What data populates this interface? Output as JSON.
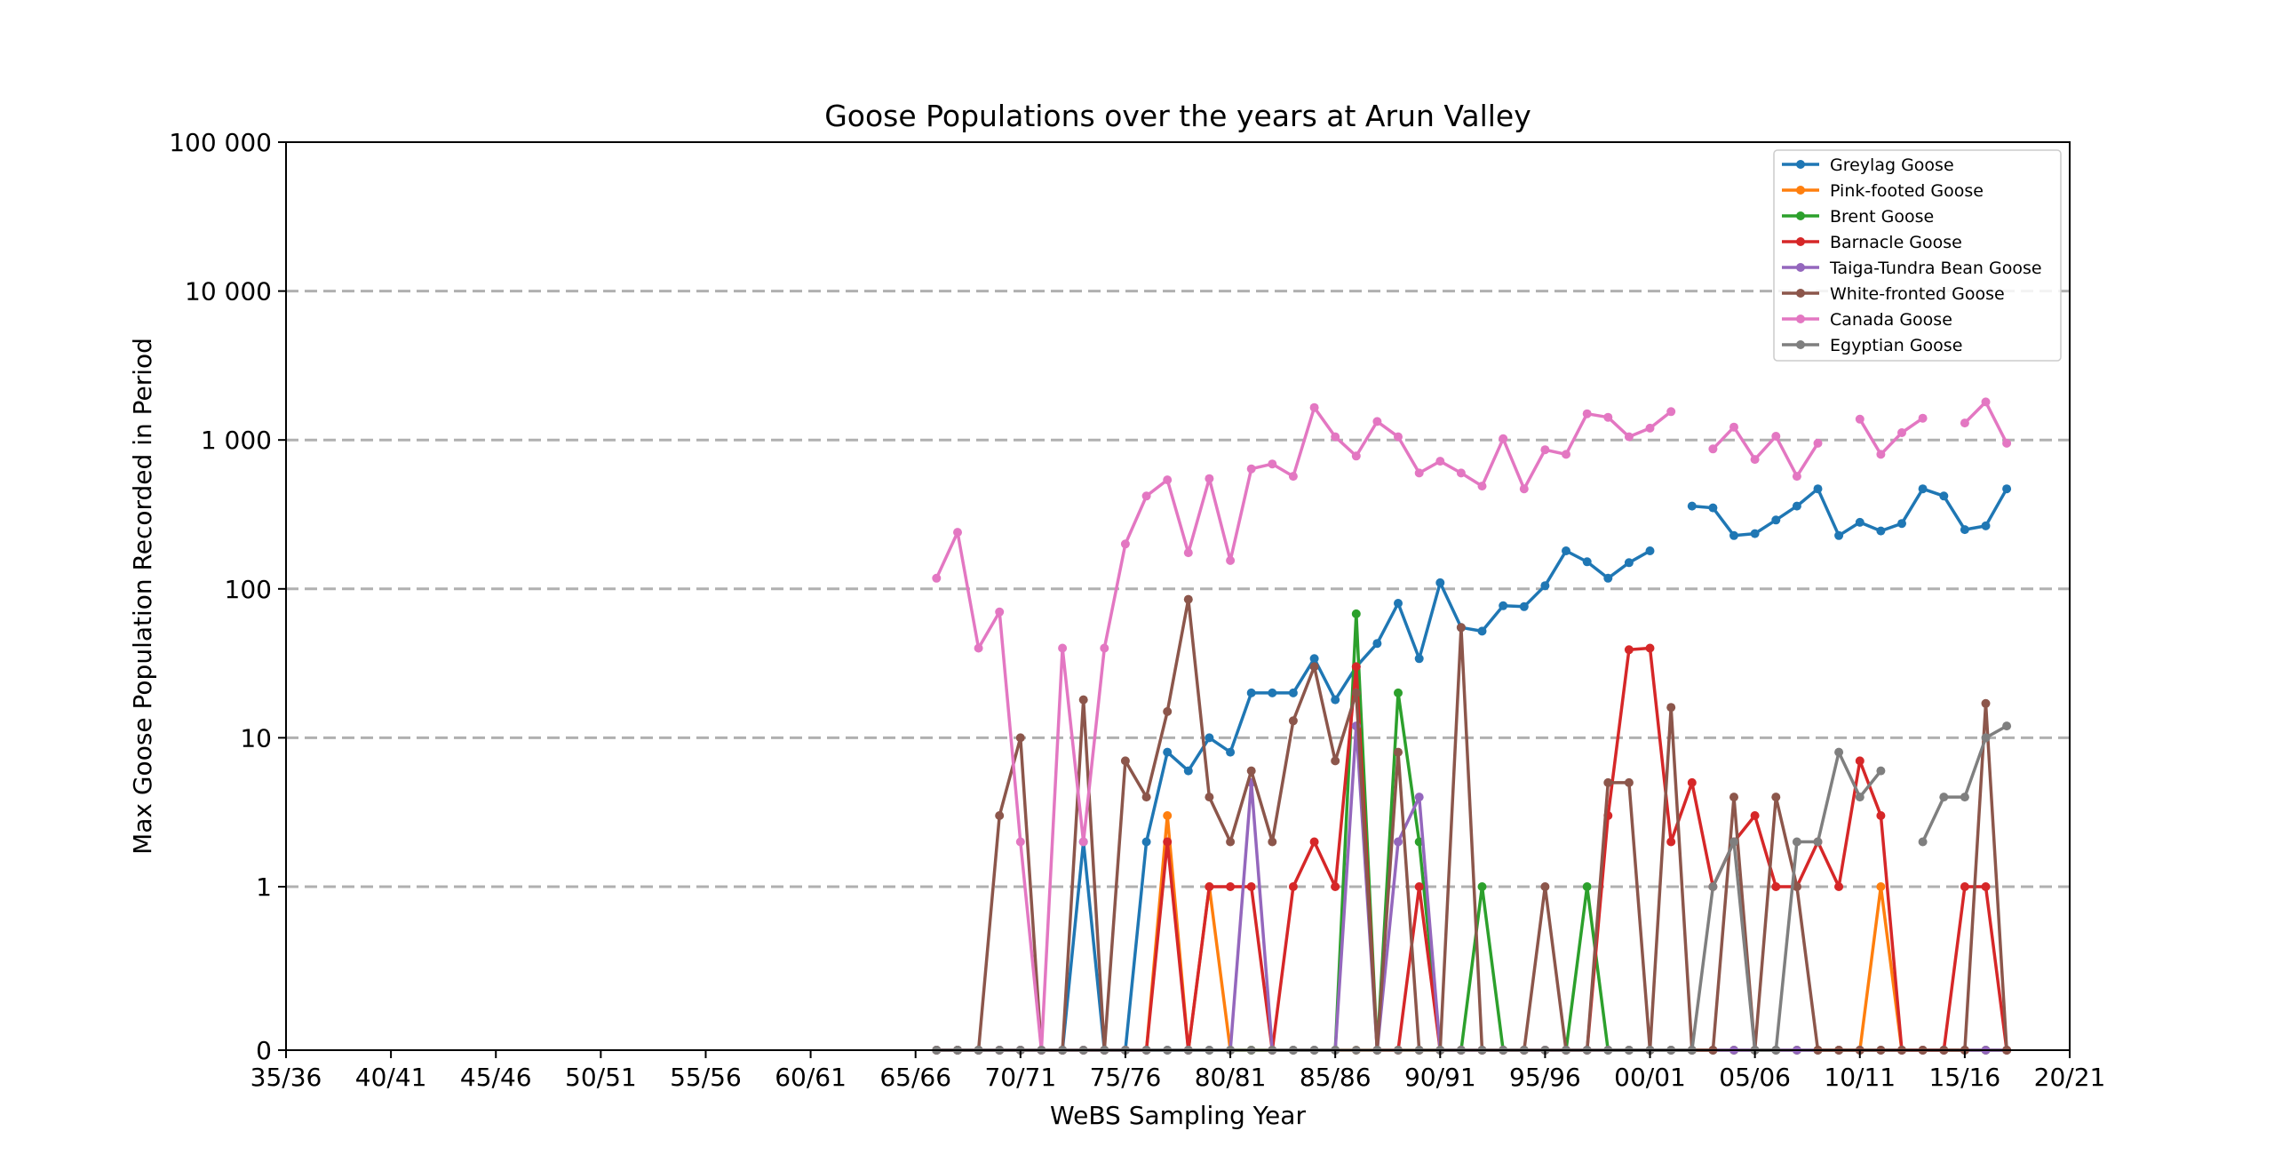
{
  "chart_data": {
    "type": "line",
    "title": "Goose Populations over the years at Arun Valley",
    "xlabel": "WeBS Sampling Year",
    "ylabel": "Max Goose Population Recorded in Period",
    "x_range": [
      1935,
      2020
    ],
    "y_scale": "symlog",
    "y_ticks": [
      {
        "value": 0,
        "label": "0"
      },
      {
        "value": 1,
        "label": "1"
      },
      {
        "value": 10,
        "label": "10"
      },
      {
        "value": 100,
        "label": "100"
      },
      {
        "value": 1000,
        "label": "1 000"
      },
      {
        "value": 10000,
        "label": "10 000"
      },
      {
        "value": 100000,
        "label": "100 000"
      }
    ],
    "x_ticks": [
      {
        "value": 1935,
        "label": "35/36"
      },
      {
        "value": 1940,
        "label": "40/41"
      },
      {
        "value": 1945,
        "label": "45/46"
      },
      {
        "value": 1950,
        "label": "50/51"
      },
      {
        "value": 1955,
        "label": "55/56"
      },
      {
        "value": 1960,
        "label": "60/61"
      },
      {
        "value": 1965,
        "label": "65/66"
      },
      {
        "value": 1970,
        "label": "70/71"
      },
      {
        "value": 1975,
        "label": "75/76"
      },
      {
        "value": 1980,
        "label": "80/81"
      },
      {
        "value": 1985,
        "label": "85/86"
      },
      {
        "value": 1990,
        "label": "90/91"
      },
      {
        "value": 1995,
        "label": "95/96"
      },
      {
        "value": 2000,
        "label": "00/01"
      },
      {
        "value": 2005,
        "label": "05/06"
      },
      {
        "value": 2010,
        "label": "10/11"
      },
      {
        "value": 2015,
        "label": "15/16"
      },
      {
        "value": 2020,
        "label": "20/21"
      }
    ],
    "grid": "horizontal dashed",
    "legend_position": "top-right",
    "x": [
      1966,
      1967,
      1968,
      1969,
      1970,
      1971,
      1972,
      1973,
      1974,
      1975,
      1976,
      1977,
      1978,
      1979,
      1980,
      1981,
      1982,
      1983,
      1984,
      1985,
      1986,
      1987,
      1988,
      1989,
      1990,
      1991,
      1992,
      1993,
      1994,
      1995,
      1996,
      1997,
      1998,
      1999,
      2000,
      2001,
      2002,
      2003,
      2004,
      2005,
      2006,
      2007,
      2008,
      2009,
      2010,
      2011,
      2012,
      2013,
      2014,
      2015,
      2016,
      2017
    ],
    "series": [
      {
        "name": "Greylag Goose",
        "color": "#1f77b4",
        "values": [
          0,
          0,
          0,
          0,
          0,
          0,
          0,
          2,
          0,
          0,
          2,
          8,
          6,
          10,
          8,
          20,
          20,
          20,
          34,
          18,
          30,
          43,
          80,
          34,
          110,
          55,
          52,
          77,
          76,
          105,
          180,
          152,
          118,
          150,
          180,
          null,
          360,
          350,
          228,
          235,
          290,
          360,
          470,
          228,
          280,
          245,
          275,
          470,
          420,
          250,
          265,
          470
        ]
      },
      {
        "name": "Pink-footed Goose",
        "color": "#ff7f0e",
        "values": [
          0,
          0,
          0,
          0,
          0,
          0,
          0,
          0,
          0,
          0,
          0,
          3,
          0,
          1,
          0,
          0,
          0,
          0,
          0,
          0,
          0,
          0,
          0,
          0,
          0,
          0,
          0,
          0,
          0,
          0,
          0,
          0,
          0,
          0,
          0,
          0,
          0,
          0,
          0,
          0,
          0,
          0,
          0,
          0,
          0,
          1,
          0,
          0,
          0,
          0,
          0,
          0
        ]
      },
      {
        "name": "Brent Goose",
        "color": "#2ca02c",
        "values": [
          0,
          0,
          0,
          0,
          0,
          0,
          0,
          0,
          0,
          0,
          0,
          0,
          0,
          0,
          0,
          0,
          0,
          0,
          0,
          0,
          68,
          0,
          20,
          2,
          0,
          0,
          1,
          0,
          0,
          0,
          0,
          1,
          0,
          0,
          0,
          0,
          0,
          0,
          0,
          0,
          0,
          0,
          0,
          0,
          0,
          0,
          0,
          0,
          0,
          0,
          0,
          0
        ]
      },
      {
        "name": "Barnacle Goose",
        "color": "#d62728",
        "values": [
          0,
          0,
          0,
          0,
          0,
          0,
          0,
          0,
          0,
          0,
          0,
          2,
          0,
          1,
          1,
          1,
          0,
          1,
          2,
          1,
          30,
          0,
          0,
          1,
          0,
          0,
          0,
          0,
          0,
          0,
          0,
          0,
          3,
          39,
          40,
          2,
          5,
          1,
          2,
          3,
          1,
          1,
          2,
          1,
          7,
          3,
          0,
          0,
          0,
          1,
          1,
          0
        ]
      },
      {
        "name": "Taiga-Tundra Bean Goose",
        "color": "#9467bd",
        "values": [
          0,
          0,
          0,
          0,
          0,
          0,
          0,
          0,
          0,
          0,
          0,
          0,
          0,
          0,
          0,
          5,
          0,
          0,
          0,
          0,
          12,
          0,
          2,
          4,
          0,
          0,
          0,
          0,
          0,
          0,
          0,
          0,
          0,
          0,
          0,
          0,
          0,
          0,
          0,
          0,
          0,
          0,
          0,
          0,
          0,
          0,
          0,
          0,
          0,
          0,
          0,
          0
        ]
      },
      {
        "name": "White-fronted Goose",
        "color": "#8c564b",
        "values": [
          0,
          0,
          0,
          3,
          10,
          0,
          0,
          18,
          0,
          7,
          4,
          15,
          85,
          4,
          2,
          6,
          2,
          13,
          30,
          7,
          20,
          0,
          8,
          0,
          0,
          55,
          0,
          0,
          0,
          1,
          0,
          0,
          5,
          5,
          0,
          16,
          0,
          0,
          4,
          0,
          4,
          1,
          0,
          0,
          0,
          0,
          0,
          0,
          0,
          0,
          17,
          0
        ]
      },
      {
        "name": "Canada Goose",
        "color": "#e377c2",
        "values": [
          118,
          240,
          40,
          70,
          2,
          0,
          40,
          2,
          40,
          200,
          420,
          540,
          175,
          550,
          155,
          640,
          690,
          570,
          1650,
          1050,
          780,
          1330,
          1050,
          600,
          720,
          600,
          490,
          1020,
          470,
          860,
          800,
          1500,
          1420,
          1050,
          1200,
          1550,
          null,
          870,
          1220,
          740,
          1060,
          570,
          950,
          null,
          1380,
          800,
          1120,
          1400,
          null,
          1300,
          1800,
          950
        ]
      },
      {
        "name": "Egyptian Goose",
        "color": "#7f7f7f",
        "values": [
          0,
          0,
          0,
          0,
          0,
          0,
          0,
          0,
          0,
          0,
          0,
          0,
          0,
          0,
          0,
          0,
          0,
          0,
          0,
          0,
          0,
          0,
          0,
          0,
          0,
          0,
          0,
          0,
          0,
          0,
          0,
          0,
          0,
          0,
          0,
          0,
          0,
          1,
          2,
          0,
          0,
          2,
          2,
          8,
          4,
          6,
          null,
          2,
          4,
          4,
          10,
          12
        ]
      }
    ]
  }
}
